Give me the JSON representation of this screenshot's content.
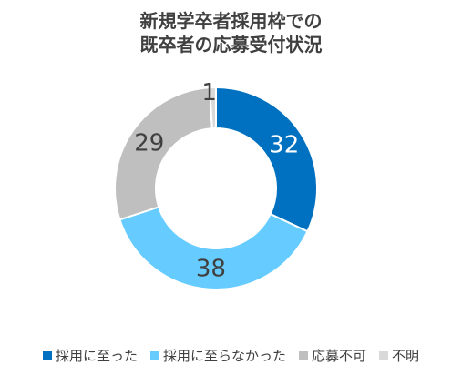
{
  "chart_data": {
    "type": "pie",
    "variant": "donut",
    "title_lines": [
      "新規学卒者採用枠での",
      "既卒者の応募受付状況"
    ],
    "categories": [
      "採用に至った",
      "採用に至らなかった",
      "応募不可",
      "不明"
    ],
    "values": [
      32,
      38,
      29,
      1
    ],
    "colors": [
      "#0070c0",
      "#66ccff",
      "#bfbfbf",
      "#d9d9d9"
    ],
    "label_colors": [
      "#ffffff",
      "#404040",
      "#404040",
      "#404040"
    ],
    "legend_position": "bottom",
    "start": "12 o'clock",
    "direction": "clockwise"
  }
}
